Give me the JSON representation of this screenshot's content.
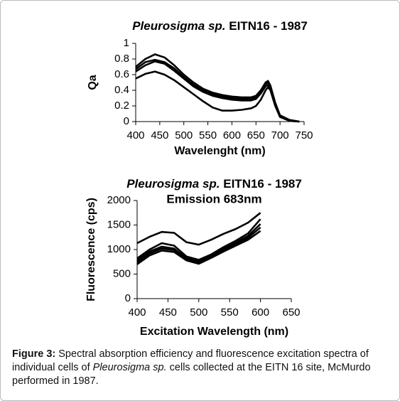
{
  "chart_data": [
    {
      "type": "line",
      "title_italic": "Pleurosigma sp.",
      "title_rest": "EITN16 - 1987",
      "x_label": "Wavelenght (nm)",
      "y_label": "Qa",
      "x": [
        400,
        420,
        440,
        460,
        480,
        500,
        520,
        540,
        560,
        580,
        600,
        620,
        640,
        650,
        660,
        670,
        675,
        680,
        690,
        700,
        720,
        740
      ],
      "series": [
        {
          "color": "#000000",
          "values": [
            0.7,
            0.8,
            0.86,
            0.82,
            0.72,
            0.6,
            0.5,
            0.42,
            0.37,
            0.34,
            0.32,
            0.31,
            0.31,
            0.33,
            0.4,
            0.5,
            0.52,
            0.46,
            0.24,
            0.08,
            0.02,
            0.0
          ]
        },
        {
          "color": "#000000",
          "values": [
            0.67,
            0.76,
            0.79,
            0.76,
            0.68,
            0.57,
            0.47,
            0.4,
            0.35,
            0.32,
            0.3,
            0.29,
            0.29,
            0.31,
            0.38,
            0.48,
            0.5,
            0.44,
            0.22,
            0.07,
            0.02,
            0.0
          ]
        },
        {
          "color": "#000000",
          "values": [
            0.64,
            0.72,
            0.77,
            0.74,
            0.65,
            0.55,
            0.45,
            0.38,
            0.33,
            0.3,
            0.28,
            0.27,
            0.27,
            0.29,
            0.36,
            0.45,
            0.47,
            0.42,
            0.21,
            0.06,
            0.01,
            0.0
          ]
        },
        {
          "color": "#000000",
          "values": [
            0.55,
            0.61,
            0.64,
            0.6,
            0.53,
            0.44,
            0.35,
            0.26,
            0.18,
            0.14,
            0.14,
            0.15,
            0.17,
            0.2,
            0.28,
            0.4,
            0.44,
            0.4,
            0.2,
            0.06,
            0.01,
            0.0
          ]
        }
      ],
      "xlim": [
        400,
        750
      ],
      "xticks": [
        400,
        450,
        500,
        550,
        600,
        650,
        700,
        750
      ],
      "ylim": [
        0,
        1
      ],
      "yticks": [
        0,
        0.2,
        0.4,
        0.6,
        0.8,
        1
      ]
    },
    {
      "type": "line",
      "title_italic": "Pleurosigma sp.",
      "title_rest": "EITN16 - 1987",
      "subtitle": "Emission 683nm",
      "x_label": "Excitation Wavelength (nm)",
      "y_label": "Fluorescence (cps)",
      "x": [
        400,
        420,
        440,
        460,
        480,
        500,
        520,
        540,
        560,
        580,
        600
      ],
      "series": [
        {
          "color": "#000000",
          "values": [
            1130,
            1260,
            1360,
            1340,
            1150,
            1100,
            1200,
            1320,
            1420,
            1550,
            1750
          ]
        },
        {
          "color": "#000000",
          "values": [
            820,
            1000,
            1130,
            1080,
            860,
            790,
            900,
            1050,
            1180,
            1330,
            1620
          ]
        },
        {
          "color": "#000000",
          "values": [
            780,
            960,
            1060,
            1020,
            820,
            760,
            880,
            1010,
            1140,
            1280,
            1520
          ]
        },
        {
          "color": "#000000",
          "values": [
            740,
            920,
            1020,
            990,
            800,
            730,
            850,
            990,
            1110,
            1240,
            1450
          ]
        },
        {
          "color": "#000000",
          "values": [
            700,
            880,
            980,
            950,
            780,
            710,
            830,
            960,
            1080,
            1200,
            1380
          ]
        }
      ],
      "xlim": [
        400,
        650
      ],
      "xticks": [
        400,
        450,
        500,
        550,
        600,
        650
      ],
      "ylim": [
        0,
        2000
      ],
      "yticks": [
        0,
        500,
        1000,
        1500,
        2000
      ]
    }
  ],
  "caption": {
    "label": "Figure 3:",
    "text_1": "Spectral absorption efficiency and fluorescence excitation spectra of individual cells of",
    "italic": "Pleurosigma sp.",
    "text_2": "cells collected at the EITN 16 site, McMurdo performed in 1987."
  }
}
